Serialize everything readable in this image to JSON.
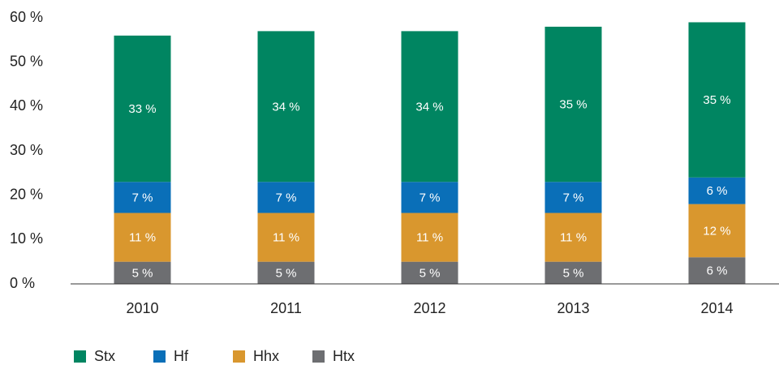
{
  "chart_data": {
    "type": "stacked_bar",
    "categories": [
      "2010",
      "2011",
      "2012",
      "2013",
      "2014"
    ],
    "series": [
      {
        "name": "Htx",
        "color": "#6d6e71",
        "values": [
          5,
          5,
          5,
          5,
          6
        ],
        "value_labels": [
          "5 %",
          "5 %",
          "5 %",
          "5 %",
          "6 %"
        ]
      },
      {
        "name": "Hhx",
        "color": "#d9972e",
        "values": [
          11,
          11,
          11,
          11,
          12
        ],
        "value_labels": [
          "11 %",
          "11 %",
          "11 %",
          "11 %",
          "12 %"
        ]
      },
      {
        "name": "Hf",
        "color": "#0a6fb8",
        "values": [
          7,
          7,
          7,
          7,
          6
        ],
        "value_labels": [
          "7 %",
          "7 %",
          "7 %",
          "7 %",
          "6 %"
        ]
      },
      {
        "name": "Stx",
        "color": "#008561",
        "values": [
          33,
          34,
          34,
          35,
          35
        ],
        "value_labels": [
          "33 %",
          "34 %",
          "34 %",
          "35 %",
          "35 %"
        ]
      }
    ],
    "ylim": [
      0,
      60
    ],
    "yticks": [
      {
        "value": 0,
        "label": "0 %"
      },
      {
        "value": 10,
        "label": "10 %"
      },
      {
        "value": 20,
        "label": "20 %"
      },
      {
        "value": 30,
        "label": "30 %"
      },
      {
        "value": 40,
        "label": "40 %"
      },
      {
        "value": 50,
        "label": "50 %"
      },
      {
        "value": 60,
        "label": "60 %"
      }
    ],
    "grid": false,
    "legend": "bottom"
  }
}
